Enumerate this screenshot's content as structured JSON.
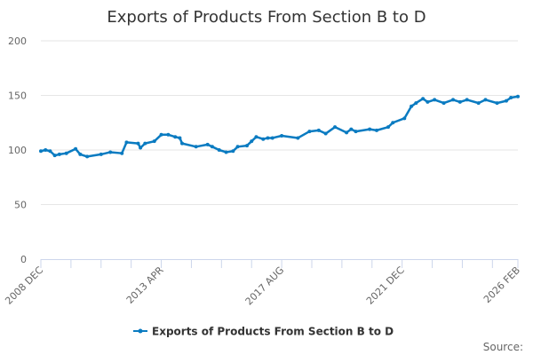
{
  "chart_data": {
    "type": "line",
    "title": "Exports of Products From Section B to D",
    "xlabel": "",
    "ylabel": "",
    "ylim": [
      0,
      200
    ],
    "yticks": [
      0,
      50,
      100,
      150,
      200
    ],
    "xrange": [
      "2008-12",
      "2026-02"
    ],
    "x_tick_interval_months": 13,
    "x_tick_labels": [
      "2008 DEC",
      "2013 APR",
      "2017 AUG",
      "2021 DEC",
      "2026 FEB"
    ],
    "grid": "horizontal",
    "legend_position": "bottom",
    "color": "#0a7bc1",
    "series": [
      {
        "name": "Exports of Products From Section B to D",
        "x": [
          "2008-12",
          "2009-02",
          "2009-04",
          "2009-06",
          "2009-08",
          "2009-11",
          "2010-03",
          "2010-05",
          "2010-08",
          "2011-02",
          "2011-06",
          "2011-11",
          "2012-01",
          "2012-06",
          "2012-07",
          "2012-09",
          "2013-01",
          "2013-04",
          "2013-07",
          "2013-10",
          "2013-12",
          "2014-01",
          "2014-07",
          "2014-12",
          "2015-02",
          "2015-05",
          "2015-08",
          "2015-11",
          "2016-01",
          "2016-05",
          "2016-07",
          "2016-09",
          "2016-12",
          "2017-02",
          "2017-04",
          "2017-08",
          "2018-03",
          "2018-08",
          "2018-12",
          "2019-03",
          "2019-07",
          "2019-12",
          "2020-02",
          "2020-04",
          "2020-10",
          "2021-01",
          "2021-06",
          "2021-08",
          "2022-01",
          "2022-04",
          "2022-06",
          "2022-09",
          "2022-11",
          "2023-02",
          "2023-06",
          "2023-10",
          "2024-01",
          "2024-04",
          "2024-09",
          "2024-12",
          "2025-05",
          "2025-09",
          "2025-11",
          "2026-02"
        ],
        "values": [
          99,
          100,
          99,
          95,
          96,
          97,
          101,
          96,
          94,
          96,
          98,
          97,
          107,
          106,
          102,
          106,
          108,
          114,
          114,
          112,
          111,
          106,
          103,
          105,
          103,
          100,
          98,
          99,
          103,
          104,
          108,
          112,
          110,
          111,
          111,
          113,
          111,
          117,
          118,
          115,
          121,
          116,
          119,
          117,
          119,
          118,
          121,
          125,
          129,
          140,
          143,
          147,
          144,
          146,
          143,
          146,
          144,
          146,
          143,
          146,
          143,
          145,
          148,
          149
        ]
      }
    ]
  },
  "source_label": "Source:"
}
